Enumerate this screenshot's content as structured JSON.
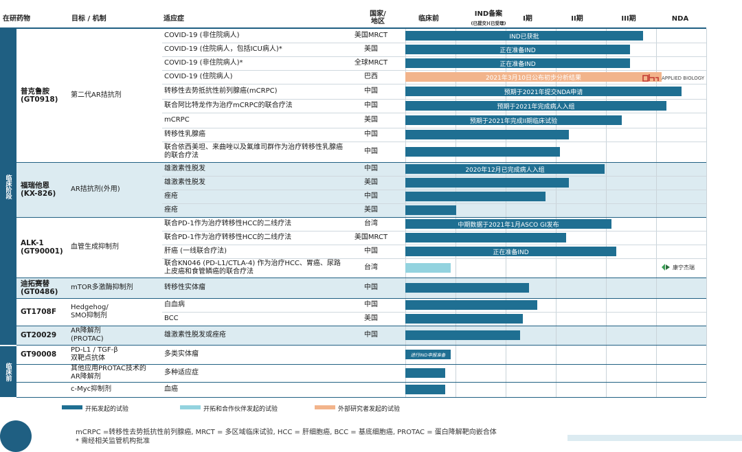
{
  "headers": {
    "phase_group": "在研药物",
    "target": "目标 / 机制",
    "indication": "适应症",
    "country": "国家/\n地区",
    "preclinical": "临床前",
    "ind": "IND备案",
    "ind_sub": "(已提交)(已受理)",
    "p1": "I期",
    "p2": "II期",
    "p3": "III期",
    "nda": "NDA"
  },
  "side_labels": {
    "clinical": "临床阶段",
    "preclinical": "临床前"
  },
  "colors": {
    "company": "#1f6f92",
    "partner": "#93d3df",
    "external": "#f2b48b",
    "header_line": "#1f5f82",
    "band": "#dcebf1"
  },
  "drugs": [
    {
      "name": "普克鲁胺\n(GT0918)",
      "target": "第二代AR拮抗剂"
    },
    {
      "name": "福瑞他恩\n(KX-826)",
      "target": "AR拮抗剂(外用)"
    },
    {
      "name": "ALK-1\n(GT90001)",
      "target": "血管生成抑制剂"
    },
    {
      "name": "迪拓赛替\n(GT0486)",
      "target": "mTOR多激酶抑制剂"
    },
    {
      "name": "GT1708F",
      "target": "Hedgehog/\nSMO抑制剂"
    },
    {
      "name": "GT20029",
      "target": "AR降解剂\n(PROTAC)"
    },
    {
      "name": "GT90008",
      "target": "PD-L1 / TGF-β\n双靶点抗体"
    },
    {
      "name": "",
      "target": "其他应用PROTAC技术的\nAR降解剂"
    },
    {
      "name": "",
      "target": "c-Myc抑制剂"
    }
  ],
  "chart_data": {
    "type": "bar",
    "title": "",
    "stages": [
      "临床前",
      "IND备案",
      "I期",
      "II期",
      "III期",
      "NDA"
    ],
    "value_unit": "stage progress (0 = start of 临床前, 6 = end of NDA)",
    "xlim": [
      0,
      6
    ],
    "rows": [
      {
        "indication": "COVID-19 (非住院病人)",
        "country": "美国MRCT",
        "value": 4.74,
        "label": "IND已获批",
        "series": "company"
      },
      {
        "indication": "COVID-19 (住院病人，包括ICU病人)*",
        "country": "美国",
        "value": 4.48,
        "label": "正在准备IND",
        "series": "company"
      },
      {
        "indication": "COVID-19 (非住院病人)*",
        "country": "全球MRCT",
        "value": 4.48,
        "label": "正在准备IND",
        "series": "company"
      },
      {
        "indication": "COVID-19 (住院病人)",
        "country": "巴西",
        "value": 5.11,
        "label": "2021年3月10日公布初步分析结果",
        "series": "external"
      },
      {
        "indication": "转移性去势抵抗性前列腺癌(mCRPC)",
        "country": "中国",
        "value": 5.51,
        "label": "预期于2021年提交NDA申请",
        "series": "company"
      },
      {
        "indication": "联合阿比特龙作为治疗mCRPC的联合疗法",
        "country": "中国",
        "value": 5.2,
        "label": "预期于2021年完成病人入组",
        "series": "company"
      },
      {
        "indication": "mCRPC",
        "country": "美国",
        "value": 4.31,
        "label": "预期于2021年完成II期临床试验",
        "series": "company"
      },
      {
        "indication": "转移性乳腺癌",
        "country": "中国",
        "value": 3.26,
        "label": "",
        "series": "company"
      },
      {
        "indication": "联合依西美坦、来曲唑以及氟维司群作为治疗转移性乳腺癌的联合疗法",
        "country": "中国",
        "value": 3.08,
        "label": "",
        "series": "company"
      },
      {
        "indication": "雄激素性脱发",
        "country": "中国",
        "value": 3.97,
        "label": "2020年12月已完成病人入组",
        "series": "company"
      },
      {
        "indication": "雄激素性脱发",
        "country": "美国",
        "value": 3.26,
        "label": "",
        "series": "company"
      },
      {
        "indication": "痤疮",
        "country": "中国",
        "value": 2.8,
        "label": "",
        "series": "company"
      },
      {
        "indication": "痤疮",
        "country": "美国",
        "value": 1.02,
        "label": "",
        "series": "company"
      },
      {
        "indication": "联合PD-1作为治疗转移性HCC的二线疗法",
        "country": "台湾",
        "value": 4.11,
        "label": "中期数据于2021年1月ASCO GI发布",
        "series": "company"
      },
      {
        "indication": "联合PD-1作为治疗转移性HCC的二线疗法",
        "country": "美国MRCT",
        "value": 3.2,
        "label": "",
        "series": "company"
      },
      {
        "indication": "肝癌 (一线联合疗法)",
        "country": "中国",
        "value": 4.2,
        "label": "正在准备IND",
        "series": "company"
      },
      {
        "indication": "联合KN046 (PD-L1/CTLA-4) 作为治疗HCC、胃癌、尿路上皮癌和食管鳞癌的联合疗法",
        "country": "台湾",
        "value": 0.91,
        "label": "",
        "series": "partner"
      },
      {
        "indication": "转移性实体瘤",
        "country": "中国",
        "value": 2.46,
        "label": "",
        "series": "company"
      },
      {
        "indication": "白血病",
        "country": "中国",
        "value": 2.63,
        "label": "",
        "series": "company"
      },
      {
        "indication": "BCC",
        "country": "美国",
        "value": 2.34,
        "label": "",
        "series": "company"
      },
      {
        "indication": "雄激素性脱发或痤疮",
        "country": "中国",
        "value": 2.29,
        "label": "",
        "series": "company"
      },
      {
        "indication": "多类实体瘤",
        "country": "",
        "value": 0.91,
        "label": "进行IND申报准备",
        "series": "company"
      },
      {
        "indication": "多种适应症",
        "country": "",
        "value": 0.8,
        "label": "",
        "series": "company"
      },
      {
        "indication": "血癌",
        "country": "",
        "value": 0.8,
        "label": "",
        "series": "company"
      }
    ],
    "legend": [
      {
        "name": "开拓发起的试验",
        "series": "company"
      },
      {
        "name": "开拓和合作伙伴发起的试验",
        "series": "partner"
      },
      {
        "name": "外部研究者发起的试验",
        "series": "external"
      }
    ]
  },
  "logos": {
    "applied_biology": "APPLIED BIOLOGY",
    "alphamab": "康宁杰瑞"
  },
  "footnote": {
    "line1": "mCRPC =转移性去势抵抗性前列腺癌, MRCT = 多区域临床试验, HCC = 肝细胞癌, BCC = 基底细胞癌, PROTAC = 蛋白降解靶向嵌合体",
    "line2": "* 需经相关监管机构批准"
  }
}
